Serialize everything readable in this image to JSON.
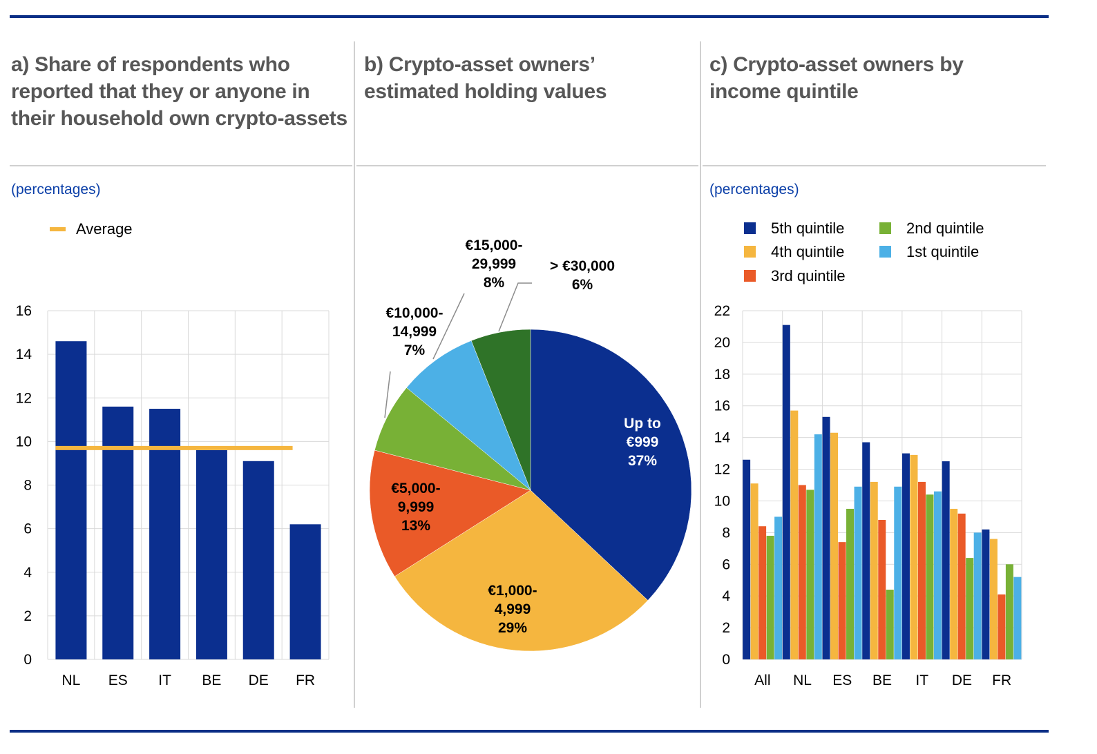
{
  "panels": {
    "a": {
      "title": "a) Share of respondents who reported that they or anyone in their household own crypto-assets",
      "unit": "(percentages)"
    },
    "b": {
      "title": "b) Crypto-asset owners’ estimated holding values"
    },
    "c": {
      "title": "c) Crypto-asset owners by income quintile",
      "unit": "(percentages)"
    }
  },
  "colors": {
    "rule": "#0b2f86",
    "dark_blue": "#0b2f8f",
    "yellow": "#f5b63f",
    "red_orange": "#ea5a28",
    "green": "#78b136",
    "light_blue": "#4cb0e6",
    "dark_green": "#2f7328"
  },
  "chart_data": [
    {
      "type": "bar",
      "categories": [
        "NL",
        "ES",
        "IT",
        "BE",
        "DE",
        "FR"
      ],
      "values": [
        14.6,
        11.6,
        11.5,
        9.6,
        9.1,
        6.2
      ],
      "average": 9.7,
      "legend": [
        "Average"
      ],
      "ylim": [
        0,
        16
      ],
      "yticks": [
        "0",
        "2",
        "4",
        "6",
        "8",
        "10",
        "12",
        "14",
        "16"
      ],
      "grid": true,
      "legend_position": "top-left"
    },
    {
      "type": "pie",
      "slices": [
        {
          "label": [
            "Up to",
            "€999",
            "37%"
          ],
          "value": 37,
          "color": "#0b2f8f",
          "text_color": "#ffffff"
        },
        {
          "label": [
            "€1,000-",
            "4,999",
            "29%"
          ],
          "value": 29,
          "color": "#f5b63f",
          "text_color": "#000000"
        },
        {
          "label": [
            "€5,000-",
            "9,999",
            "13%"
          ],
          "value": 13,
          "color": "#ea5a28",
          "text_color": "#000000"
        },
        {
          "label": [
            "€10,000-",
            "14,999",
            "7%"
          ],
          "value": 7,
          "color": "#78b136",
          "text_color": "#000000"
        },
        {
          "label": [
            "€15,000-",
            "29,999",
            "8%"
          ],
          "value": 8,
          "color": "#4cb0e6",
          "text_color": "#000000"
        },
        {
          "label": [
            "> €30,000",
            "6%"
          ],
          "value": 6,
          "color": "#2f7328",
          "text_color": "#000000"
        }
      ]
    },
    {
      "type": "bar",
      "categories": [
        "All",
        "NL",
        "ES",
        "BE",
        "IT",
        "DE",
        "FR"
      ],
      "series": [
        {
          "name": "5th quintile",
          "color": "#0b2f8f",
          "values": [
            12.6,
            21.1,
            15.3,
            13.7,
            13.0,
            12.5,
            8.2
          ]
        },
        {
          "name": "4th quintile",
          "color": "#f5b63f",
          "values": [
            11.1,
            15.7,
            14.3,
            11.2,
            12.9,
            9.5,
            7.6
          ]
        },
        {
          "name": "3rd quintile",
          "color": "#ea5a28",
          "values": [
            8.4,
            11.0,
            7.4,
            8.8,
            11.2,
            9.2,
            4.1
          ]
        },
        {
          "name": "2nd quintile",
          "color": "#78b136",
          "values": [
            7.8,
            10.7,
            9.5,
            4.4,
            10.4,
            6.4,
            6.0
          ]
        },
        {
          "name": "1st quintile",
          "color": "#4cb0e6",
          "values": [
            9.0,
            14.2,
            10.9,
            10.9,
            10.6,
            8.0,
            5.2
          ]
        }
      ],
      "ylim": [
        0,
        22
      ],
      "yticks": [
        "0",
        "2",
        "4",
        "6",
        "8",
        "10",
        "12",
        "14",
        "16",
        "18",
        "20",
        "22"
      ],
      "grid": true,
      "legend_position": "top"
    }
  ]
}
